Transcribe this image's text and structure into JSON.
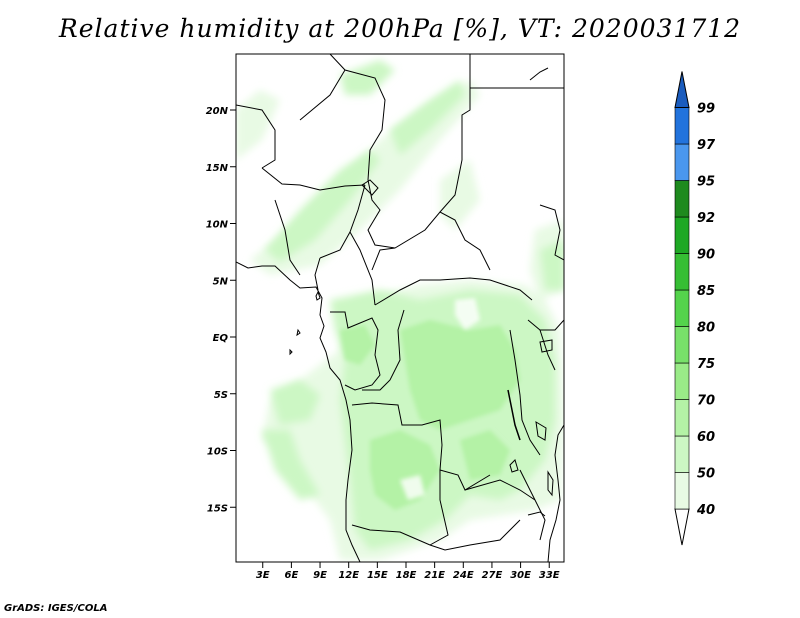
{
  "title": "Relative humidity at 200hPa [%], VT: 2020031712",
  "credit": "GrADS: IGES/COLA",
  "lat_ticks": [
    {
      "lat": 20,
      "label": "20N"
    },
    {
      "lat": 15,
      "label": "15N"
    },
    {
      "lat": 10,
      "label": "10N"
    },
    {
      "lat": 5,
      "label": "5N"
    },
    {
      "lat": 0,
      "label": "EQ"
    },
    {
      "lat": -5,
      "label": "5S"
    },
    {
      "lat": -10,
      "label": "10S"
    },
    {
      "lat": -15,
      "label": "15S"
    }
  ],
  "lon_ticks": [
    {
      "lon": 3,
      "label": "3E"
    },
    {
      "lon": 6,
      "label": "6E"
    },
    {
      "lon": 9,
      "label": "9E"
    },
    {
      "lon": 12,
      "label": "12E"
    },
    {
      "lon": 15,
      "label": "15E"
    },
    {
      "lon": 18,
      "label": "18E"
    },
    {
      "lon": 21,
      "label": "21E"
    },
    {
      "lon": 24,
      "label": "24E"
    },
    {
      "lon": 27,
      "label": "27E"
    },
    {
      "lon": 30,
      "label": "30E"
    },
    {
      "lon": 33,
      "label": "33E"
    }
  ],
  "colorbar": {
    "labels": [
      "40",
      "50",
      "60",
      "70",
      "75",
      "80",
      "85",
      "90",
      "92",
      "95",
      "97",
      "99"
    ],
    "colors": [
      "#ffffff",
      "#e8fae4",
      "#ccf7c4",
      "#b4f2a6",
      "#9aeb88",
      "#78e06a",
      "#54d34c",
      "#36be34",
      "#1ea824",
      "#1e8a1e",
      "#4a97ee",
      "#2273dc",
      "#1a5cbe"
    ]
  }
}
